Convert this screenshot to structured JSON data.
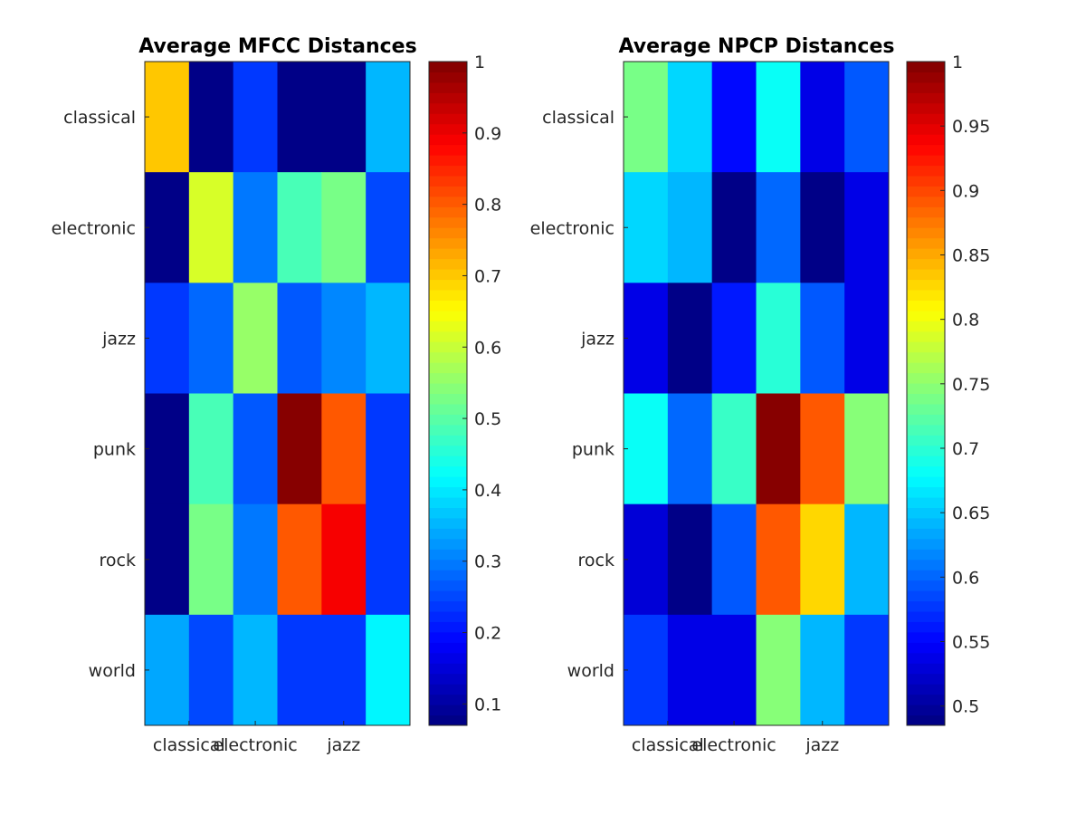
{
  "chart_data": [
    {
      "type": "heatmap",
      "title": "Average MFCC Distances",
      "rows": [
        "classical",
        "electronic",
        "jazz",
        "punk",
        "rock",
        "world"
      ],
      "xticklabels": [
        "classical",
        "electronic",
        "jazz"
      ],
      "values": [
        [
          0.7,
          0.08,
          0.24,
          0.07,
          0.07,
          0.36
        ],
        [
          0.08,
          0.62,
          0.29,
          0.48,
          0.53,
          0.25
        ],
        [
          0.23,
          0.28,
          0.55,
          0.27,
          0.31,
          0.36
        ],
        [
          0.07,
          0.49,
          0.26,
          1.0,
          0.8,
          0.23
        ],
        [
          0.07,
          0.53,
          0.3,
          0.8,
          0.89,
          0.24
        ],
        [
          0.34,
          0.25,
          0.36,
          0.23,
          0.24,
          0.41
        ]
      ],
      "colorbar": {
        "range": [
          0.07,
          1.0
        ],
        "ticks": [
          "0.1",
          "0.2",
          "0.3",
          "0.4",
          "0.5",
          "0.6",
          "0.7",
          "0.8",
          "0.9",
          "1"
        ],
        "colormap": "jet"
      }
    },
    {
      "type": "heatmap",
      "title": "Average NPCP Distances",
      "rows": [
        "classical",
        "electronic",
        "jazz",
        "punk",
        "rock",
        "world"
      ],
      "xticklabels": [
        "classical",
        "electronic",
        "jazz"
      ],
      "values": [
        [
          0.74,
          0.66,
          0.55,
          0.68,
          0.54,
          0.59
        ],
        [
          0.66,
          0.64,
          0.49,
          0.6,
          0.49,
          0.54
        ],
        [
          0.54,
          0.49,
          0.56,
          0.7,
          0.59,
          0.54
        ],
        [
          0.68,
          0.6,
          0.71,
          1.0,
          0.89,
          0.75
        ],
        [
          0.53,
          0.49,
          0.59,
          0.89,
          0.83,
          0.64
        ],
        [
          0.58,
          0.54,
          0.54,
          0.75,
          0.64,
          0.58
        ]
      ],
      "colorbar": {
        "range": [
          0.485,
          1.0
        ],
        "ticks": [
          "0.5",
          "0.55",
          "0.6",
          "0.65",
          "0.7",
          "0.75",
          "0.8",
          "0.85",
          "0.9",
          "0.95",
          "1"
        ],
        "colormap": "jet"
      }
    }
  ]
}
